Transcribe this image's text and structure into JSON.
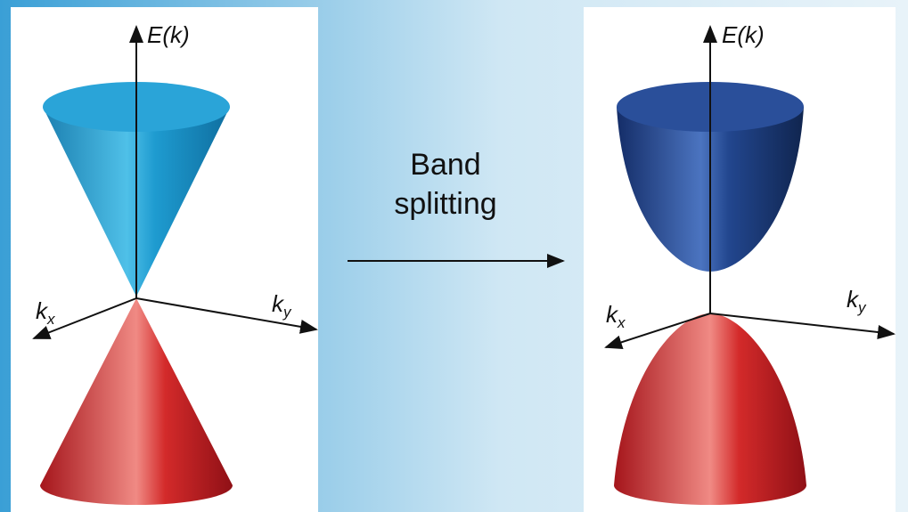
{
  "left_panel": {
    "axes": {
      "energy": "E(k)",
      "kx": {
        "base": "k",
        "subscript": "x"
      },
      "ky": {
        "base": "k",
        "subscript": "y"
      }
    }
  },
  "middle": {
    "label_line1": "Band",
    "label_line2": "splitting"
  },
  "right_panel": {
    "axes": {
      "energy": "E(k)",
      "kx": {
        "base": "k",
        "subscript": "x"
      },
      "ky": {
        "base": "k",
        "subscript": "y"
      }
    }
  }
}
